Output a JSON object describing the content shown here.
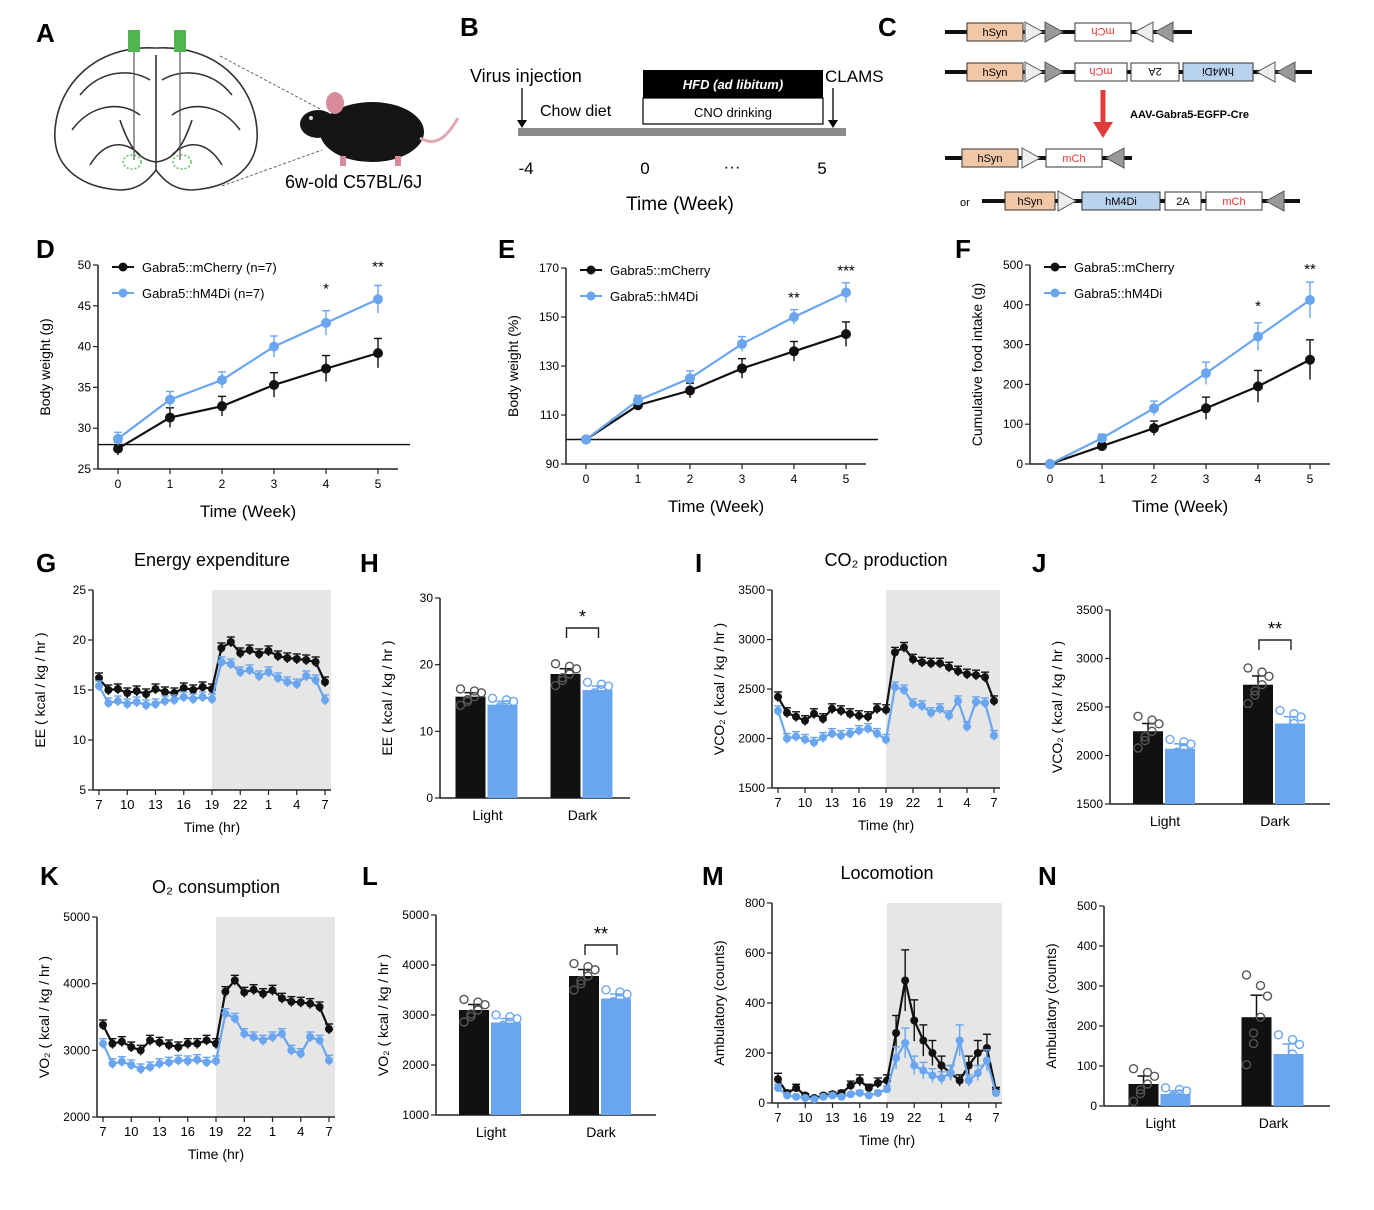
{
  "colors": {
    "black_series": "#111111",
    "blue_series": "#6aa6f0",
    "shade": "#e6e6e6",
    "red_arrow": "#e23b3b",
    "hsyn": "#f0c8a8",
    "hm4di": "#b9d3ef"
  },
  "panel_A": {
    "letter": "A",
    "mouse_label": "6w-old C57BL/6J",
    "icon": "mouse-icon"
  },
  "panel_B": {
    "letter": "B",
    "virus": "Virus injection",
    "chow": "Chow diet",
    "hfd": "HFD (ad libitum)",
    "cno": "CNO drinking",
    "clams": "CLAMS",
    "ticks": [
      "-4",
      "0",
      "···",
      "5"
    ],
    "xlabel": "Time (Week)"
  },
  "panel_C": {
    "letter": "C",
    "row1": [
      "hSyn",
      "mCh"
    ],
    "row2": [
      "hSyn",
      "mCh",
      "2A",
      "hM4Di"
    ],
    "arrow_label": "AAV-Gabra5-EGFP-Cre",
    "row3": [
      "hSyn",
      "mCh"
    ],
    "or": "or",
    "row4": [
      "hSyn",
      "hM4Di",
      "2A",
      "mCh"
    ]
  },
  "chart_data": [
    {
      "id": "D",
      "letter": "D",
      "type": "line",
      "xlabel": "Time (Week)",
      "ylabel": "Body weight (g)",
      "ylim": [
        25,
        50
      ],
      "yticks": [
        25,
        30,
        35,
        40,
        45,
        50
      ],
      "x": [
        0,
        1,
        2,
        3,
        4,
        5
      ],
      "xticks": [
        "0",
        "1",
        "2",
        "3",
        "4",
        "5"
      ],
      "baseline": 28,
      "series": [
        {
          "name": "Gabra5::mCherry (n=7)",
          "values": [
            27.5,
            31.3,
            32.7,
            35.3,
            37.3,
            39.2
          ],
          "err": [
            0.8,
            1.2,
            1.2,
            1.5,
            1.6,
            1.8
          ]
        },
        {
          "name": "Gabra5::hM4Di (n=7)",
          "values": [
            28.7,
            33.5,
            35.9,
            40.0,
            42.9,
            45.8
          ],
          "err": [
            0.8,
            1.0,
            1.0,
            1.3,
            1.5,
            1.7
          ]
        }
      ],
      "annotations": [
        {
          "x": 4,
          "y": 46.5,
          "text": "*"
        },
        {
          "x": 5,
          "y": 49.2,
          "text": "**"
        }
      ]
    },
    {
      "id": "E",
      "letter": "E",
      "type": "line",
      "xlabel": "Time (Week)",
      "ylabel": "Body weight (%)",
      "ylim": [
        90,
        170
      ],
      "yticks": [
        90,
        110,
        130,
        150,
        170
      ],
      "x": [
        0,
        1,
        2,
        3,
        4,
        5
      ],
      "xticks": [
        "0",
        "1",
        "2",
        "3",
        "4",
        "5"
      ],
      "baseline": 100,
      "series": [
        {
          "name": "Gabra5::mCherry",
          "values": [
            100,
            114,
            120,
            129,
            136,
            143
          ],
          "err": [
            1,
            2,
            3,
            4,
            4,
            5
          ]
        },
        {
          "name": "Gabra5::hM4Di",
          "values": [
            100,
            116,
            125,
            139,
            150,
            160
          ],
          "err": [
            1,
            2,
            3,
            3,
            3,
            4
          ]
        }
      ],
      "annotations": [
        {
          "x": 4,
          "y": 156,
          "text": "**"
        },
        {
          "x": 5,
          "y": 167,
          "text": "***"
        }
      ]
    },
    {
      "id": "F",
      "letter": "F",
      "type": "line",
      "xlabel": "Time (Week)",
      "ylabel": "Cumulative food intake (g)",
      "ylim": [
        0,
        500
      ],
      "yticks": [
        0,
        100,
        200,
        300,
        400,
        500
      ],
      "x": [
        0,
        1,
        2,
        3,
        4,
        5
      ],
      "xticks": [
        "0",
        "1",
        "2",
        "3",
        "4",
        "5"
      ],
      "series": [
        {
          "name": "Gabra5::mCherry",
          "values": [
            0,
            45,
            90,
            140,
            195,
            262
          ],
          "err": [
            3,
            8,
            18,
            28,
            40,
            50
          ]
        },
        {
          "name": "Gabra5::hM4Di",
          "values": [
            0,
            65,
            140,
            228,
            320,
            412
          ],
          "err": [
            3,
            10,
            18,
            28,
            35,
            45
          ]
        }
      ],
      "annotations": [
        {
          "x": 4,
          "y": 385,
          "text": "*"
        },
        {
          "x": 5,
          "y": 478,
          "text": "**"
        }
      ]
    },
    {
      "id": "G",
      "letter": "G",
      "type": "line",
      "title": "Energy expenditure",
      "xlabel": "Time (hr)",
      "ylabel": "EE ( kcal / kg / hr )",
      "ylim": [
        5,
        25
      ],
      "yticks": [
        5,
        10,
        15,
        20,
        25
      ],
      "xticks": [
        "7",
        "10",
        "13",
        "16",
        "19",
        "22",
        "1",
        "4",
        "7"
      ],
      "dark_start": 12,
      "n_points": 25,
      "series": [
        {
          "name": "Gabra5::mCherry",
          "values": [
            16.2,
            15.0,
            15.1,
            14.7,
            14.9,
            14.6,
            15.1,
            14.8,
            14.7,
            15.2,
            15.0,
            15.3,
            15.1,
            19.2,
            19.8,
            18.7,
            19.0,
            18.6,
            18.9,
            18.4,
            18.2,
            18.1,
            18.0,
            17.8,
            15.8
          ]
        },
        {
          "name": "Gabra5::hM4Di",
          "values": [
            15.4,
            13.7,
            13.9,
            13.6,
            13.8,
            13.5,
            13.6,
            13.9,
            14.0,
            14.3,
            14.1,
            14.3,
            14.1,
            17.8,
            17.6,
            16.8,
            17.0,
            16.4,
            16.8,
            16.2,
            15.8,
            15.6,
            16.4,
            16.0,
            14.0
          ]
        }
      ]
    },
    {
      "id": "H",
      "letter": "H",
      "type": "bar",
      "xlabel": "",
      "ylabel": "EE ( kcal / kg / hr )",
      "ylim": [
        0,
        30
      ],
      "yticks": [
        0,
        10,
        20,
        30
      ],
      "categories": [
        "Light",
        "Dark"
      ],
      "series": [
        {
          "name": "Gabra5::mCherry",
          "values": [
            15.2,
            18.6
          ],
          "err": [
            0.6,
            0.8
          ]
        },
        {
          "name": "Gabra5::hM4Di",
          "values": [
            14.0,
            16.2
          ],
          "err": [
            0.5,
            0.6
          ]
        }
      ],
      "annotations": [
        {
          "category": "Dark",
          "text": "*"
        }
      ]
    },
    {
      "id": "I",
      "letter": "I",
      "type": "line",
      "title": "CO₂ production",
      "xlabel": "Time (hr)",
      "ylabel": "VCO₂ ( kcal / kg / hr )",
      "ylim": [
        1500,
        3500
      ],
      "yticks": [
        1500,
        2000,
        2500,
        3000,
        3500
      ],
      "xticks": [
        "7",
        "10",
        "13",
        "16",
        "19",
        "22",
        "1",
        "4",
        "7"
      ],
      "dark_start": 12,
      "n_points": 25,
      "series": [
        {
          "name": "Gabra5::mCherry",
          "values": [
            2420,
            2260,
            2220,
            2180,
            2250,
            2200,
            2300,
            2280,
            2250,
            2230,
            2220,
            2300,
            2290,
            2870,
            2920,
            2800,
            2770,
            2760,
            2760,
            2720,
            2680,
            2650,
            2640,
            2620,
            2380
          ]
        },
        {
          "name": "Gabra5::hM4Di",
          "values": [
            2280,
            2000,
            2020,
            1990,
            1960,
            2010,
            2050,
            2030,
            2050,
            2080,
            2100,
            2050,
            1990,
            2520,
            2490,
            2350,
            2330,
            2260,
            2300,
            2230,
            2380,
            2120,
            2370,
            2360,
            2030
          ]
        }
      ]
    },
    {
      "id": "J",
      "letter": "J",
      "type": "bar",
      "xlabel": "",
      "ylabel": "VCO₂ ( kcal / kg / hr )",
      "ylim": [
        1500,
        3500
      ],
      "yticks": [
        1500,
        2000,
        2500,
        3000,
        3500
      ],
      "categories": [
        "Light",
        "Dark"
      ],
      "series": [
        {
          "name": "Gabra5::mCherry",
          "values": [
            2250,
            2730
          ],
          "err": [
            80,
            90
          ]
        },
        {
          "name": "Gabra5::hM4Di",
          "values": [
            2070,
            2330
          ],
          "err": [
            50,
            70
          ]
        }
      ],
      "annotations": [
        {
          "category": "Dark",
          "text": "**"
        }
      ]
    },
    {
      "id": "K",
      "letter": "K",
      "type": "line",
      "title": "O₂ consumption",
      "xlabel": "Time (hr)",
      "ylabel": "VO₂ ( kcal / kg / hr )",
      "ylim": [
        2000,
        5000
      ],
      "yticks": [
        2000,
        3000,
        4000,
        5000
      ],
      "xticks": [
        "7",
        "10",
        "13",
        "16",
        "19",
        "22",
        "1",
        "4",
        "7"
      ],
      "dark_start": 12,
      "n_points": 25,
      "series": [
        {
          "name": "Gabra5::mCherry",
          "values": [
            3380,
            3100,
            3130,
            3050,
            3000,
            3150,
            3120,
            3080,
            3050,
            3100,
            3100,
            3150,
            3100,
            3880,
            4050,
            3870,
            3910,
            3850,
            3900,
            3780,
            3730,
            3720,
            3700,
            3650,
            3320
          ]
        },
        {
          "name": "Gabra5::hM4Di",
          "values": [
            3100,
            2800,
            2830,
            2780,
            2720,
            2750,
            2800,
            2820,
            2850,
            2840,
            2860,
            2820,
            2840,
            3550,
            3480,
            3250,
            3200,
            3150,
            3200,
            3250,
            3000,
            2950,
            3200,
            3150,
            2850
          ]
        }
      ]
    },
    {
      "id": "L",
      "letter": "L",
      "type": "bar",
      "xlabel": "",
      "ylabel": "VO₂ ( kcal / kg / hr )",
      "ylim": [
        1000,
        5000
      ],
      "yticks": [
        1000,
        2000,
        3000,
        4000,
        5000
      ],
      "categories": [
        "Light",
        "Dark"
      ],
      "series": [
        {
          "name": "Gabra5::mCherry",
          "values": [
            3100,
            3780
          ],
          "err": [
            110,
            130
          ]
        },
        {
          "name": "Gabra5::hM4Di",
          "values": [
            2850,
            3330
          ],
          "err": [
            80,
            90
          ]
        }
      ],
      "annotations": [
        {
          "category": "Dark",
          "text": "**"
        }
      ]
    },
    {
      "id": "M",
      "letter": "M",
      "type": "line",
      "title": "Locomotion",
      "xlabel": "Time (hr)",
      "ylabel": "Ambulatory (counts)",
      "ylim": [
        0,
        800
      ],
      "yticks": [
        0,
        200,
        400,
        600,
        800
      ],
      "xticks": [
        "7",
        "10",
        "13",
        "16",
        "19",
        "22",
        "1",
        "4",
        "7"
      ],
      "dark_start": 12,
      "n_points": 25,
      "series": [
        {
          "name": "Gabra5::mCherry",
          "values": [
            95,
            40,
            60,
            30,
            20,
            30,
            35,
            40,
            70,
            90,
            60,
            80,
            90,
            280,
            490,
            330,
            250,
            200,
            150,
            120,
            90,
            150,
            200,
            220,
            50
          ]
        },
        {
          "name": "Gabra5::hM4Di",
          "values": [
            60,
            30,
            25,
            20,
            15,
            25,
            30,
            25,
            35,
            40,
            30,
            40,
            55,
            180,
            240,
            150,
            130,
            110,
            100,
            120,
            250,
            90,
            120,
            170,
            40
          ]
        }
      ]
    },
    {
      "id": "N",
      "letter": "N",
      "type": "bar",
      "xlabel": "",
      "ylabel": "Ambulatory (counts)",
      "ylim": [
        0,
        500
      ],
      "yticks": [
        0,
        100,
        200,
        300,
        400,
        500
      ],
      "categories": [
        "Light",
        "Dark"
      ],
      "series": [
        {
          "name": "Gabra5::mCherry",
          "values": [
            55,
            222
          ],
          "err": [
            20,
            55
          ]
        },
        {
          "name": "Gabra5::hM4Di",
          "values": [
            30,
            130
          ],
          "err": [
            8,
            25
          ]
        }
      ]
    }
  ]
}
